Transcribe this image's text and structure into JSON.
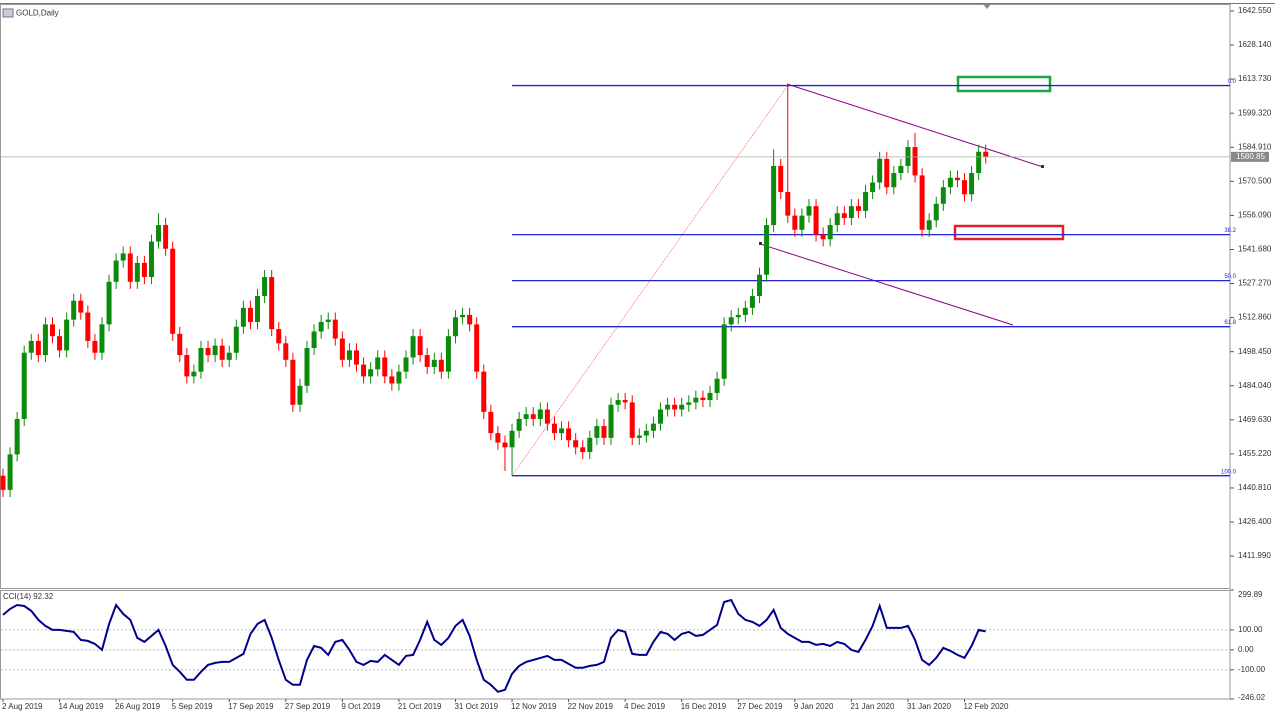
{
  "chart_data": [
    {
      "type": "candlestick",
      "title": "GOLD,Daily",
      "categories": [
        "2 Aug 2019",
        null,
        null,
        null,
        null,
        null,
        null,
        null,
        "14 Aug 2019",
        null,
        null,
        null,
        null,
        null,
        null,
        null,
        "26 Aug 2019",
        null,
        null,
        null,
        null,
        null,
        null,
        null,
        "5 Sep 2019",
        null,
        null,
        null,
        null,
        null,
        null,
        null,
        "17 Sep 2019",
        null,
        null,
        null,
        null,
        null,
        null,
        null,
        "27 Sep 2019",
        null,
        null,
        null,
        null,
        null,
        null,
        null,
        "9 Oct 2019",
        null,
        null,
        null,
        null,
        null,
        null,
        null,
        "21 Oct 2019",
        null,
        null,
        null,
        null,
        null,
        null,
        null,
        "31 Oct 2019",
        null,
        null,
        null,
        null,
        null,
        null,
        null,
        "12 Nov 2019",
        null,
        null,
        null,
        null,
        null,
        null,
        null,
        "22 Nov 2019",
        null,
        null,
        null,
        null,
        null,
        null,
        null,
        "4 Dec 2019",
        null,
        null,
        null,
        null,
        null,
        null,
        null,
        "16 Dec 2019",
        null,
        null,
        null,
        null,
        null,
        null,
        null,
        "27 Dec 2019",
        null,
        null,
        null,
        null,
        null,
        null,
        null,
        "9 Jan 2020",
        null,
        null,
        null,
        null,
        null,
        null,
        null,
        "21 Jan 2020",
        null,
        null,
        null,
        null,
        null,
        null,
        null,
        "31 Jan 2020",
        null,
        null,
        null,
        null,
        null,
        null,
        null,
        "12 Feb 2020",
        null,
        null,
        null
      ],
      "open": [
        1446,
        1440,
        1455,
        1470,
        1498,
        1503,
        1497,
        1510,
        1505,
        1499,
        1512,
        1520,
        1515,
        1503,
        1498,
        1510,
        1528,
        1537,
        1540,
        1528,
        1536,
        1530,
        1545,
        1552,
        1542,
        1506,
        1497,
        1488,
        1490,
        1500,
        1497,
        1501,
        1495,
        1498,
        1509,
        1517,
        1511,
        1522,
        1530,
        1508,
        1502,
        1495,
        1476,
        1484,
        1500,
        1507,
        1511,
        1512,
        1504,
        1495,
        1499,
        1493,
        1488,
        1491,
        1496,
        1488,
        1485,
        1490,
        1496,
        1505,
        1497,
        1492,
        1495,
        1490,
        1505,
        1513,
        1514,
        1510,
        1490,
        1473,
        1464,
        1460,
        1458,
        1465,
        1470,
        1472,
        1470,
        1474,
        1468,
        1464,
        1466,
        1461,
        1458,
        1456,
        1462,
        1467,
        1462,
        1476,
        1478,
        1477,
        1462,
        1463,
        1465,
        1468,
        1474,
        1476,
        1474,
        1476,
        1477,
        1479,
        1478,
        1481,
        1487,
        1510,
        1513,
        1514,
        1517,
        1522,
        1531,
        1552,
        1577,
        1566,
        1556,
        1550,
        1556,
        1560,
        1548,
        1546,
        1552,
        1557,
        1555,
        1560,
        1558,
        1566,
        1570,
        1580,
        1568,
        1574,
        1577,
        1585,
        1573,
        1550,
        1554,
        1561,
        1568,
        1572,
        1571,
        1565,
        1574,
        1583
      ],
      "high": [
        1449,
        1458,
        1473,
        1501,
        1506,
        1506,
        1513,
        1513,
        1508,
        1515,
        1523,
        1523,
        1518,
        1506,
        1513,
        1531,
        1540,
        1543,
        1543,
        1539,
        1539,
        1548,
        1557,
        1555,
        1545,
        1509,
        1500,
        1493,
        1503,
        1503,
        1504,
        1504,
        1501,
        1512,
        1520,
        1520,
        1525,
        1533,
        1533,
        1511,
        1505,
        1498,
        1487,
        1503,
        1510,
        1514,
        1515,
        1515,
        1507,
        1502,
        1502,
        1496,
        1494,
        1499,
        1499,
        1491,
        1493,
        1499,
        1508,
        1508,
        1500,
        1498,
        1498,
        1508,
        1516,
        1517,
        1517,
        1513,
        1493,
        1476,
        1467,
        1463,
        1468,
        1473,
        1475,
        1475,
        1477,
        1477,
        1471,
        1469,
        1469,
        1464,
        1461,
        1465,
        1470,
        1470,
        1479,
        1481,
        1481,
        1480,
        1466,
        1468,
        1471,
        1477,
        1479,
        1479,
        1479,
        1480,
        1482,
        1482,
        1484,
        1490,
        1513,
        1516,
        1517,
        1520,
        1525,
        1534,
        1555,
        1584,
        1580,
        1611,
        1559,
        1559,
        1563,
        1563,
        1551,
        1555,
        1560,
        1560,
        1563,
        1563,
        1569,
        1573,
        1583,
        1583,
        1577,
        1580,
        1588,
        1591,
        1576,
        1557,
        1564,
        1571,
        1575,
        1575,
        1574,
        1577,
        1586,
        1586
      ],
      "low": [
        1437,
        1437,
        1452,
        1467,
        1495,
        1494,
        1494,
        1502,
        1496,
        1496,
        1509,
        1512,
        1500,
        1495,
        1495,
        1507,
        1525,
        1534,
        1525,
        1525,
        1527,
        1527,
        1542,
        1539,
        1503,
        1494,
        1485,
        1485,
        1487,
        1494,
        1494,
        1492,
        1492,
        1495,
        1506,
        1508,
        1508,
        1519,
        1505,
        1499,
        1492,
        1473,
        1473,
        1481,
        1497,
        1504,
        1508,
        1501,
        1492,
        1492,
        1490,
        1485,
        1485,
        1488,
        1485,
        1482,
        1482,
        1487,
        1493,
        1494,
        1489,
        1489,
        1487,
        1487,
        1502,
        1510,
        1507,
        1487,
        1470,
        1461,
        1457,
        1448,
        1446,
        1462,
        1467,
        1467,
        1467,
        1465,
        1461,
        1461,
        1458,
        1455,
        1453,
        1453,
        1459,
        1459,
        1459,
        1473,
        1474,
        1459,
        1459,
        1460,
        1462,
        1465,
        1471,
        1471,
        1471,
        1473,
        1474,
        1475,
        1475,
        1478,
        1484,
        1507,
        1510,
        1511,
        1514,
        1519,
        1528,
        1549,
        1563,
        1553,
        1547,
        1547,
        1553,
        1545,
        1543,
        1543,
        1549,
        1552,
        1552,
        1555,
        1555,
        1563,
        1567,
        1565,
        1565,
        1571,
        1574,
        1570,
        1547,
        1547,
        1551,
        1558,
        1565,
        1568,
        1562,
        1562,
        1571,
        1578
      ],
      "close": [
        1440,
        1455,
        1470,
        1498,
        1503,
        1497,
        1510,
        1505,
        1499,
        1512,
        1520,
        1515,
        1503,
        1498,
        1510,
        1528,
        1537,
        1540,
        1528,
        1536,
        1530,
        1545,
        1552,
        1542,
        1506,
        1497,
        1488,
        1490,
        1500,
        1497,
        1501,
        1495,
        1498,
        1509,
        1517,
        1511,
        1522,
        1530,
        1508,
        1502,
        1495,
        1476,
        1484,
        1500,
        1507,
        1511,
        1512,
        1504,
        1495,
        1499,
        1493,
        1488,
        1491,
        1496,
        1488,
        1485,
        1490,
        1496,
        1505,
        1497,
        1492,
        1495,
        1490,
        1505,
        1513,
        1514,
        1510,
        1490,
        1473,
        1464,
        1460,
        1458,
        1465,
        1470,
        1472,
        1470,
        1474,
        1468,
        1464,
        1466,
        1461,
        1458,
        1456,
        1462,
        1467,
        1462,
        1476,
        1478,
        1477,
        1462,
        1463,
        1465,
        1468,
        1474,
        1476,
        1474,
        1476,
        1477,
        1479,
        1478,
        1481,
        1487,
        1510,
        1513,
        1514,
        1517,
        1522,
        1531,
        1552,
        1577,
        1566,
        1556,
        1550,
        1556,
        1560,
        1548,
        1546,
        1552,
        1557,
        1555,
        1560,
        1558,
        1566,
        1570,
        1580,
        1568,
        1574,
        1577,
        1585,
        1573,
        1550,
        1554,
        1561,
        1568,
        1572,
        1571,
        1565,
        1574,
        1583,
        1580.85
      ],
      "up_color": "#0b8a0b",
      "down_color": "#ff0000",
      "ylim": [
        1398.5,
        1645.5
      ],
      "yticks": [
        {
          "value": 1642.55,
          "label": "1642.550"
        },
        {
          "value": 1628.14,
          "label": "1628.140"
        },
        {
          "value": 1613.73,
          "label": "1613.730"
        },
        {
          "value": 1599.32,
          "label": "1599.320"
        },
        {
          "value": 1584.91,
          "label": "1584.910"
        },
        {
          "value": 1570.5,
          "label": "1570.500"
        },
        {
          "value": 1556.09,
          "label": "1556.090"
        },
        {
          "value": 1541.68,
          "label": "1541.680"
        },
        {
          "value": 1527.27,
          "label": "1527.270"
        },
        {
          "value": 1512.86,
          "label": "1512.860"
        },
        {
          "value": 1498.45,
          "label": "1498.450"
        },
        {
          "value": 1484.04,
          "label": "1484.040"
        },
        {
          "value": 1469.63,
          "label": "1469.630"
        },
        {
          "value": 1455.22,
          "label": "1455.220"
        },
        {
          "value": 1440.81,
          "label": "1440.810"
        },
        {
          "value": 1426.4,
          "label": "1426.400"
        },
        {
          "value": 1411.99,
          "label": "1411.990"
        }
      ],
      "fibonacci": {
        "from_bar": 72,
        "to_bar": 111,
        "color": "#2323d8",
        "levels": [
          {
            "value": 0,
            "label": "0.0"
          },
          38.2,
          {
            "value": 50,
            "label": "50.0"
          },
          61.8,
          {
            "value": 100,
            "label": "100.0"
          }
        ]
      }
    },
    {
      "type": "line",
      "title": "CCI(14) 92.32",
      "color": "#00008b",
      "values": [
        175,
        205,
        225,
        220,
        195,
        150,
        120,
        100,
        100,
        95,
        90,
        50,
        45,
        30,
        0,
        130,
        225,
        180,
        150,
        60,
        40,
        70,
        100,
        20,
        -75,
        -110,
        -150,
        -150,
        -110,
        -75,
        -65,
        -60,
        -60,
        -40,
        -20,
        80,
        130,
        150,
        60,
        -50,
        -150,
        -175,
        -175,
        -50,
        20,
        10,
        -25,
        40,
        50,
        0,
        -60,
        -75,
        -55,
        -60,
        -25,
        -50,
        -75,
        -30,
        -25,
        50,
        140,
        50,
        25,
        60,
        120,
        150,
        70,
        -50,
        -150,
        -175,
        -210,
        -200,
        -120,
        -80,
        -60,
        -50,
        -40,
        -30,
        -50,
        -50,
        -70,
        -90,
        -90,
        -80,
        -75,
        -60,
        60,
        100,
        90,
        -20,
        -25,
        -25,
        40,
        90,
        80,
        50,
        80,
        90,
        70,
        75,
        100,
        125,
        240,
        250,
        180,
        150,
        140,
        120,
        150,
        200,
        110,
        80,
        60,
        40,
        40,
        25,
        30,
        20,
        40,
        30,
        0,
        -10,
        50,
        120,
        220,
        110,
        110,
        110,
        120,
        50,
        -50,
        -75,
        -40,
        10,
        -5,
        -25,
        -40,
        20,
        100,
        92.32
      ],
      "ylim": [
        -246.02,
        299.89
      ],
      "yticks": [
        299.89,
        {
          "value": 100,
          "label": "100.00"
        },
        {
          "value": 0,
          "label": "0.00"
        },
        {
          "value": -100,
          "label": "-100.00"
        },
        -246.02
      ]
    }
  ]
}
